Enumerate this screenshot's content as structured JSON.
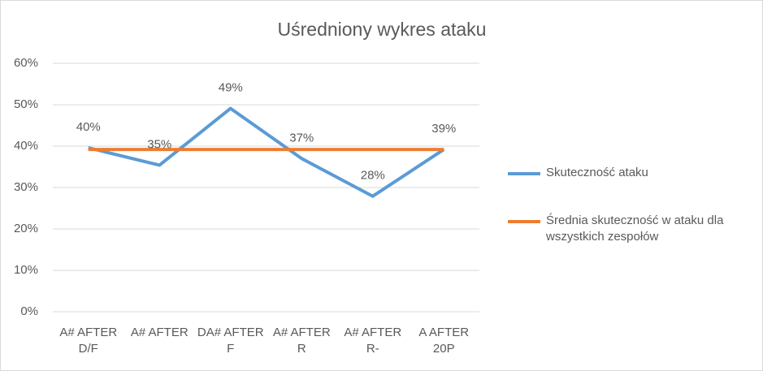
{
  "chart_data": {
    "type": "line",
    "title": "Uśredniony wykres ataku",
    "categories": [
      "A# AFTER D/F",
      "A# AFTER",
      "DA# AFTER F",
      "A# AFTER R",
      "A# AFTER R-",
      "A AFTER 20P"
    ],
    "series": [
      {
        "name": "Skuteczność ataku",
        "color": "#5b9bd5",
        "values": [
          39.6,
          35.4,
          49.1,
          37.0,
          27.9,
          39.2
        ],
        "value_labels": [
          "40%",
          "35%",
          "49%",
          "37%",
          "28%",
          "39%"
        ]
      },
      {
        "name": "Średnia skuteczność w ataku dla wszystkich zespołów",
        "color": "#ed7d31",
        "values": [
          39.2,
          39.2,
          39.2,
          39.2,
          39.2,
          39.2
        ]
      }
    ],
    "ylim": [
      0,
      60
    ],
    "yticks": [
      {
        "value": 0,
        "label": "0%"
      },
      {
        "value": 10,
        "label": "10%"
      },
      {
        "value": 20,
        "label": "20%"
      },
      {
        "value": 30,
        "label": "30%"
      },
      {
        "value": 40,
        "label": "40%"
      },
      {
        "value": 50,
        "label": "50%"
      },
      {
        "value": 60,
        "label": "60%"
      }
    ],
    "grid": true,
    "legend": "right"
  }
}
